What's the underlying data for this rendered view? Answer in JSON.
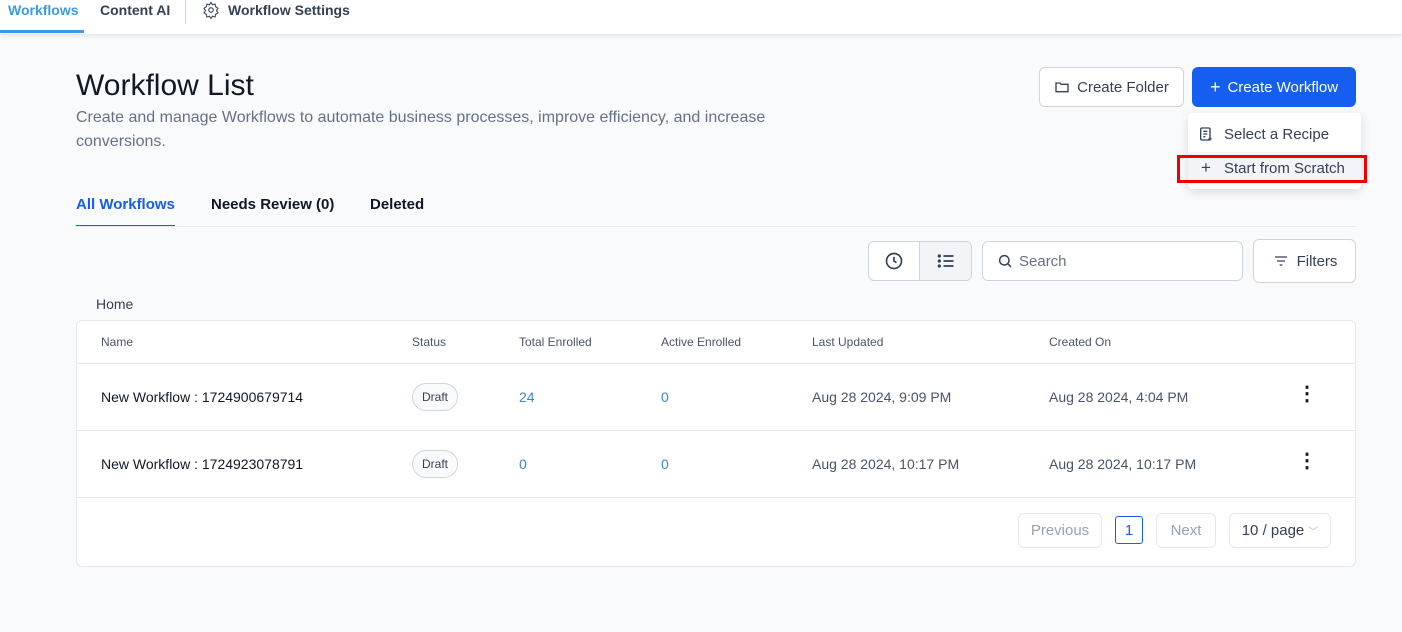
{
  "topnav": {
    "tabs": [
      {
        "label": "Workflows",
        "active": true
      },
      {
        "label": "Content AI"
      },
      {
        "label": "Workflow Settings",
        "icon": "gear-icon"
      }
    ]
  },
  "header": {
    "title": "Workflow List",
    "subtitle": "Create and manage Workflows to automate business processes, improve efficiency, and increase conversions.",
    "create_folder": "Create Folder",
    "create_workflow": "Create Workflow"
  },
  "dropdown": {
    "items": [
      {
        "label": "Select a Recipe",
        "icon": "recipe-icon"
      },
      {
        "label": "Start from Scratch",
        "icon": "plus-icon",
        "highlighted": true
      }
    ]
  },
  "tabs": [
    {
      "label": "All Workflows",
      "active": true
    },
    {
      "label": "Needs Review (0)"
    },
    {
      "label": "Deleted"
    }
  ],
  "toolbar": {
    "search_placeholder": "Search",
    "filters": "Filters",
    "view": "list"
  },
  "breadcrumb": "Home",
  "table": {
    "columns": [
      "Name",
      "Status",
      "Total Enrolled",
      "Active Enrolled",
      "Last Updated",
      "Created On"
    ],
    "rows": [
      {
        "name": "New Workflow : 1724900679714",
        "status": "Draft",
        "total": "24",
        "active": "0",
        "updated": "Aug 28 2024, 9:09 PM",
        "created": "Aug 28 2024, 4:04 PM"
      },
      {
        "name": "New Workflow : 1724923078791",
        "status": "Draft",
        "total": "0",
        "active": "0",
        "updated": "Aug 28 2024, 10:17 PM",
        "created": "Aug 28 2024, 10:17 PM"
      }
    ]
  },
  "pagination": {
    "previous": "Previous",
    "current": "1",
    "next": "Next",
    "page_size": "10 / page"
  },
  "colors": {
    "primary": "#155eef",
    "highlight": "#ee0000",
    "nav_active": "#3b9be0"
  }
}
